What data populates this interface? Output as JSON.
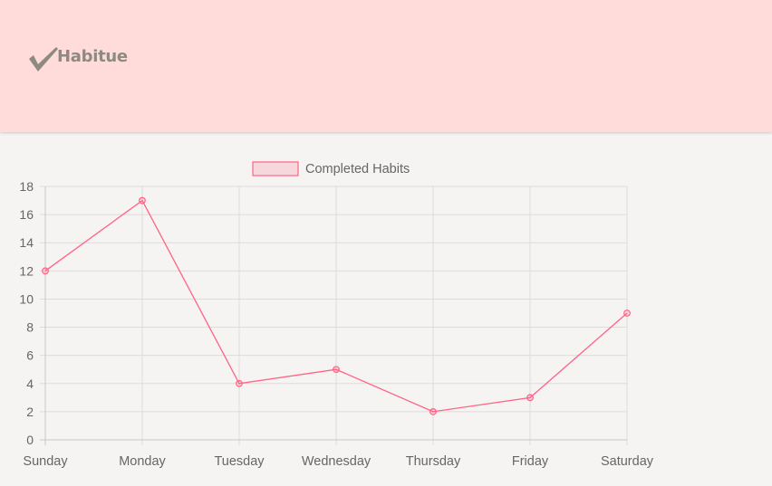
{
  "brand": {
    "name": "Habitue",
    "icon": "checkmark-icon",
    "color": "#8d8a82"
  },
  "colors": {
    "header_bg": "#ffdbd9",
    "page_bg": "#f6f3f3",
    "series_line": "#ff6384",
    "series_fill": "rgba(255,99,132,0.2)",
    "grid": "#dcdcdc",
    "tick_text": "#666666"
  },
  "chart_data": {
    "type": "line",
    "categories": [
      "Sunday",
      "Monday",
      "Tuesday",
      "Wednesday",
      "Thursday",
      "Friday",
      "Saturday"
    ],
    "series": [
      {
        "name": "Completed Habits",
        "values": [
          12,
          17,
          4,
          5,
          2,
          3,
          9
        ]
      }
    ],
    "ylim": [
      0,
      18
    ],
    "yticks": [
      0,
      2,
      4,
      6,
      8,
      10,
      12,
      14,
      16,
      18
    ],
    "grid": true,
    "legend": "top"
  }
}
